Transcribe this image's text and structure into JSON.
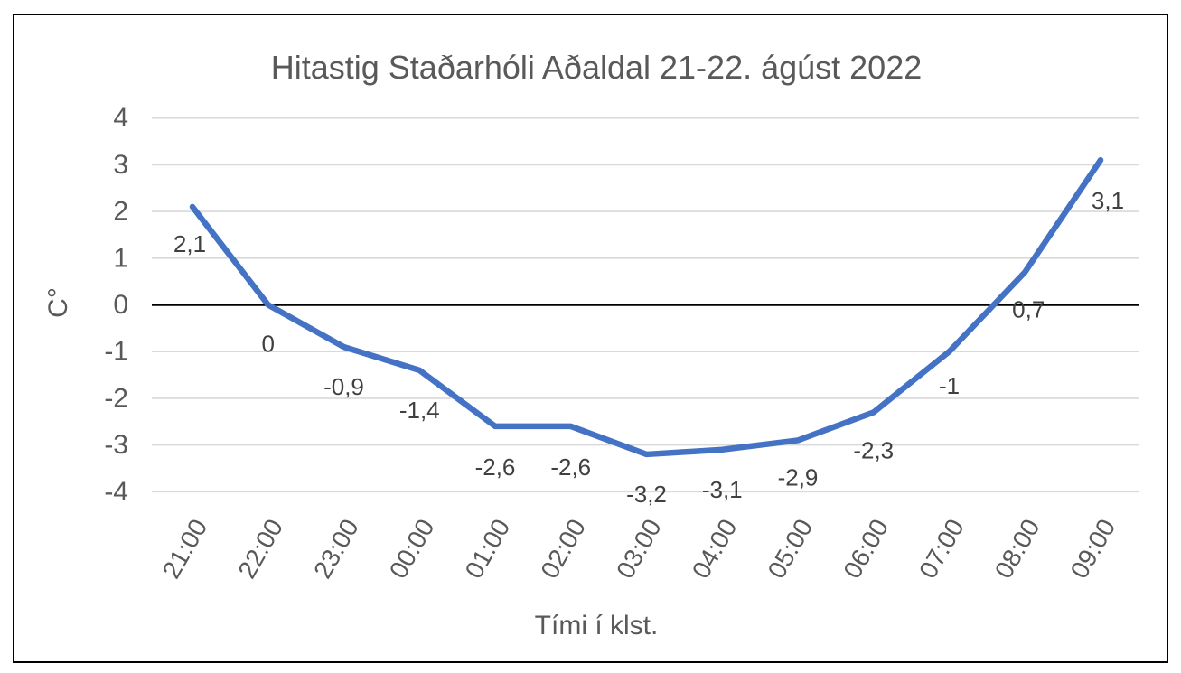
{
  "chart": {
    "title": "Hitastig Staðarhóli Aðaldal 21-22. ágúst 2022",
    "x_axis_title": "Tími í klst.",
    "y_axis_title": "C°"
  },
  "chart_data": {
    "type": "line",
    "title": "Hitastig Staðarhóli Aðaldal 21-22. ágúst 2022",
    "xlabel": "Tími í klst.",
    "ylabel": "C°",
    "categories": [
      "21:00",
      "22:00",
      "23:00",
      "00:00",
      "01:00",
      "02:00",
      "03:00",
      "04:00",
      "05:00",
      "06:00",
      "07:00",
      "08:00",
      "09:00"
    ],
    "values": [
      2.1,
      0,
      -0.9,
      -1.4,
      -2.6,
      -2.6,
      -3.2,
      -3.1,
      -2.9,
      -2.3,
      -1,
      0.7,
      3.1
    ],
    "data_labels": [
      "2,1",
      "0",
      "-0,9",
      "-1,4",
      "-2,6",
      "-2,6",
      "-3,2",
      "-3,1",
      "-2,9",
      "-2,3",
      "-1",
      "0,7",
      "3,1"
    ],
    "y_ticks": [
      4,
      3,
      2,
      1,
      0,
      -1,
      -2,
      -3,
      -4
    ],
    "y_tick_labels": [
      "4",
      "3",
      "2",
      "1",
      "0",
      "-1",
      "-2",
      "-3",
      "-4"
    ],
    "ylim": [
      -4,
      4
    ],
    "grid": true,
    "legend": false,
    "colors": {
      "line": "#4472C4",
      "gridline": "#D9D9D9",
      "zero_line": "#000000",
      "tick_text": "#595959",
      "data_label_text": "#404040"
    }
  }
}
